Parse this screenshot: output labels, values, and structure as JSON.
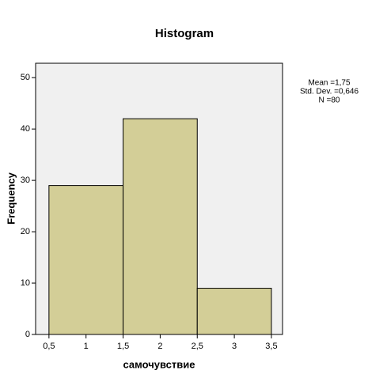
{
  "chart_data": {
    "type": "histogram",
    "title": "Histogram",
    "xlabel": "самочувствие",
    "ylabel": "Frequency",
    "bins": [
      0.5,
      1.5,
      2.5,
      3.5
    ],
    "counts": [
      29,
      42,
      9
    ],
    "color": "#d3ce97",
    "xlim": [
      0.32,
      3.65
    ],
    "xticks": [
      {
        "value": 0.5,
        "label": "0,5"
      },
      1,
      {
        "value": 1.5,
        "label": "1,5"
      },
      2,
      {
        "value": 2.5,
        "label": "2,5"
      },
      3,
      {
        "value": 3.5,
        "label": "3,5"
      }
    ],
    "ylim": [
      0,
      52.8
    ],
    "yticks": [
      0,
      10,
      20,
      30,
      40,
      50
    ],
    "annotations": [
      "Mean =1,75",
      "Std. Dev. =0,646",
      "N =80"
    ]
  }
}
